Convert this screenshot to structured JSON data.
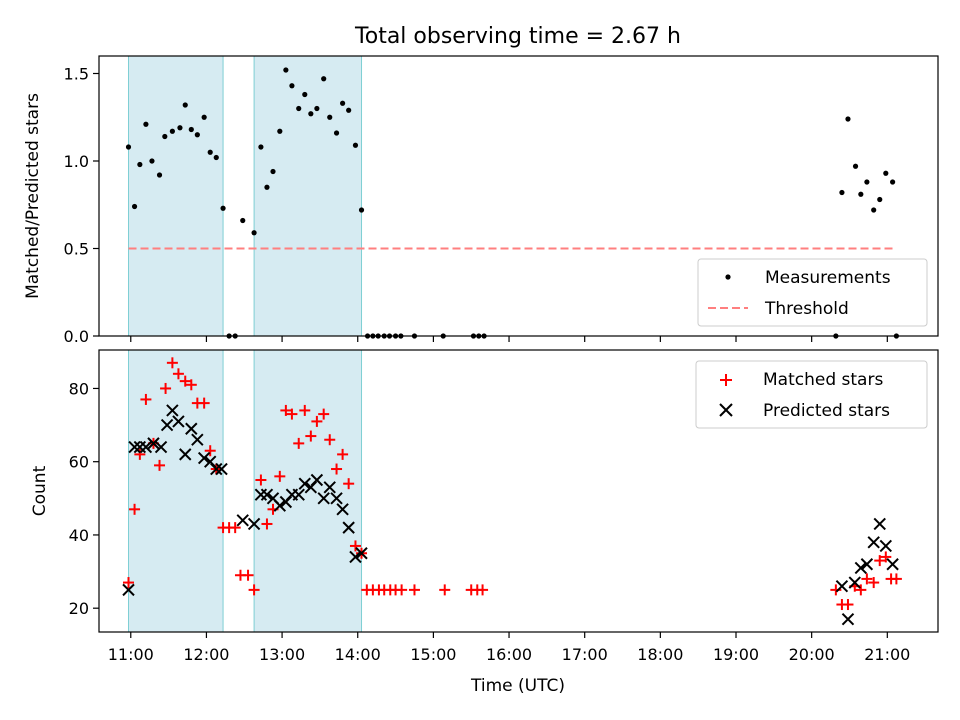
{
  "chart_data": {
    "title": "Total observing time = 2.67 h",
    "xlabel": "Time (UTC)",
    "x_ticks": [
      "11:00",
      "12:00",
      "13:00",
      "14:00",
      "15:00",
      "16:00",
      "17:00",
      "18:00",
      "19:00",
      "20:00",
      "21:00"
    ],
    "x_tick_hours": [
      11,
      12,
      13,
      14,
      15,
      16,
      17,
      18,
      19,
      20,
      21
    ],
    "xlim": [
      10.58,
      21.67
    ],
    "shaded_intervals": [
      [
        10.97,
        12.22
      ],
      [
        12.63,
        14.05
      ]
    ],
    "shade_color": "#add8e6",
    "panels": [
      {
        "type": "scatter",
        "ylabel": "Matched/Predicted stars",
        "ylim": [
          0,
          1.6
        ],
        "y_ticks": [
          "0.0",
          "0.5",
          "1.0",
          "1.5"
        ],
        "y_tick_values": [
          0,
          0.5,
          1.0,
          1.5
        ],
        "threshold": {
          "name": "Threshold",
          "value": 0.5,
          "x_range": [
            10.97,
            21.07
          ],
          "color": "#ff7f7f"
        },
        "legend_position": "lower-right",
        "series": [
          {
            "name": "Measurements",
            "color": "#000000",
            "marker": "dot",
            "points": [
              [
                10.97,
                1.08
              ],
              [
                11.05,
                0.74
              ],
              [
                11.12,
                0.98
              ],
              [
                11.2,
                1.21
              ],
              [
                11.28,
                1.0
              ],
              [
                11.38,
                0.92
              ],
              [
                11.45,
                1.14
              ],
              [
                11.55,
                1.17
              ],
              [
                11.65,
                1.19
              ],
              [
                11.72,
                1.32
              ],
              [
                11.8,
                1.18
              ],
              [
                11.88,
                1.15
              ],
              [
                11.97,
                1.25
              ],
              [
                12.05,
                1.05
              ],
              [
                12.13,
                1.02
              ],
              [
                12.22,
                0.73
              ],
              [
                12.3,
                0.0
              ],
              [
                12.38,
                0.0
              ],
              [
                12.48,
                0.66
              ],
              [
                12.63,
                0.59
              ],
              [
                12.72,
                1.08
              ],
              [
                12.8,
                0.85
              ],
              [
                12.88,
                0.94
              ],
              [
                12.97,
                1.17
              ],
              [
                13.05,
                1.52
              ],
              [
                13.13,
                1.43
              ],
              [
                13.22,
                1.3
              ],
              [
                13.3,
                1.38
              ],
              [
                13.38,
                1.27
              ],
              [
                13.46,
                1.3
              ],
              [
                13.55,
                1.47
              ],
              [
                13.63,
                1.25
              ],
              [
                13.72,
                1.16
              ],
              [
                13.8,
                1.33
              ],
              [
                13.88,
                1.29
              ],
              [
                13.97,
                1.09
              ],
              [
                14.05,
                0.72
              ],
              [
                14.13,
                0.0
              ],
              [
                14.2,
                0.0
              ],
              [
                14.27,
                0.0
              ],
              [
                14.35,
                0.0
              ],
              [
                14.42,
                0.0
              ],
              [
                14.5,
                0.0
              ],
              [
                14.57,
                0.0
              ],
              [
                14.75,
                0.0
              ],
              [
                15.13,
                0.0
              ],
              [
                15.53,
                0.0
              ],
              [
                15.6,
                0.0
              ],
              [
                15.67,
                0.0
              ],
              [
                20.32,
                0.0
              ],
              [
                20.4,
                0.82
              ],
              [
                20.48,
                1.24
              ],
              [
                20.58,
                0.97
              ],
              [
                20.65,
                0.81
              ],
              [
                20.73,
                0.88
              ],
              [
                20.82,
                0.72
              ],
              [
                20.9,
                0.78
              ],
              [
                20.98,
                0.93
              ],
              [
                21.07,
                0.88
              ],
              [
                21.12,
                0.0
              ]
            ]
          }
        ]
      },
      {
        "type": "scatter",
        "ylabel": "Count",
        "ylim": [
          13.5,
          90.5
        ],
        "y_ticks": [
          "20",
          "40",
          "60",
          "80"
        ],
        "y_tick_values": [
          20,
          40,
          60,
          80
        ],
        "legend_position": "upper-right",
        "series": [
          {
            "name": "Matched stars",
            "color": "#ff0000",
            "marker": "plus",
            "points": [
              [
                10.97,
                27
              ],
              [
                11.05,
                47
              ],
              [
                11.12,
                62
              ],
              [
                11.2,
                77
              ],
              [
                11.3,
                65
              ],
              [
                11.38,
                59
              ],
              [
                11.46,
                80
              ],
              [
                11.55,
                87
              ],
              [
                11.63,
                84
              ],
              [
                11.72,
                82
              ],
              [
                11.8,
                81
              ],
              [
                11.88,
                76
              ],
              [
                11.97,
                76
              ],
              [
                12.05,
                63
              ],
              [
                12.13,
                58
              ],
              [
                12.22,
                42
              ],
              [
                12.3,
                42
              ],
              [
                12.38,
                42
              ],
              [
                12.45,
                29
              ],
              [
                12.55,
                29
              ],
              [
                12.63,
                25
              ],
              [
                12.72,
                55
              ],
              [
                12.8,
                43
              ],
              [
                12.88,
                47
              ],
              [
                12.97,
                56
              ],
              [
                13.05,
                74
              ],
              [
                13.13,
                73
              ],
              [
                13.22,
                65
              ],
              [
                13.3,
                74
              ],
              [
                13.38,
                67
              ],
              [
                13.46,
                71
              ],
              [
                13.55,
                73
              ],
              [
                13.63,
                66
              ],
              [
                13.72,
                58
              ],
              [
                13.8,
                62
              ],
              [
                13.88,
                54
              ],
              [
                13.97,
                37
              ],
              [
                14.05,
                35
              ],
              [
                14.12,
                25
              ],
              [
                14.2,
                25
              ],
              [
                14.28,
                25
              ],
              [
                14.35,
                25
              ],
              [
                14.43,
                25
              ],
              [
                14.5,
                25
              ],
              [
                14.58,
                25
              ],
              [
                14.75,
                25
              ],
              [
                15.15,
                25
              ],
              [
                15.5,
                25
              ],
              [
                15.58,
                25
              ],
              [
                15.65,
                25
              ],
              [
                20.32,
                25
              ],
              [
                20.4,
                21
              ],
              [
                20.48,
                21
              ],
              [
                20.57,
                26
              ],
              [
                20.65,
                25
              ],
              [
                20.73,
                28
              ],
              [
                20.82,
                27
              ],
              [
                20.9,
                33
              ],
              [
                20.98,
                34
              ],
              [
                21.05,
                28
              ],
              [
                21.12,
                28
              ]
            ]
          },
          {
            "name": "Predicted stars",
            "color": "#000000",
            "marker": "x",
            "points": [
              [
                10.97,
                25
              ],
              [
                11.05,
                64
              ],
              [
                11.12,
                64
              ],
              [
                11.2,
                64
              ],
              [
                11.3,
                65
              ],
              [
                11.4,
                64
              ],
              [
                11.48,
                70
              ],
              [
                11.55,
                74
              ],
              [
                11.63,
                71
              ],
              [
                11.72,
                62
              ],
              [
                11.8,
                69
              ],
              [
                11.88,
                66
              ],
              [
                11.97,
                61
              ],
              [
                12.05,
                60
              ],
              [
                12.13,
                58
              ],
              [
                12.2,
                58
              ],
              [
                12.48,
                44
              ],
              [
                12.63,
                43
              ],
              [
                12.72,
                51
              ],
              [
                12.8,
                51
              ],
              [
                12.88,
                50
              ],
              [
                12.97,
                48
              ],
              [
                13.05,
                49
              ],
              [
                13.13,
                51
              ],
              [
                13.22,
                51
              ],
              [
                13.3,
                54
              ],
              [
                13.38,
                53
              ],
              [
                13.46,
                55
              ],
              [
                13.55,
                50
              ],
              [
                13.63,
                53
              ],
              [
                13.72,
                50
              ],
              [
                13.8,
                47
              ],
              [
                13.88,
                42
              ],
              [
                13.97,
                34
              ],
              [
                14.05,
                35
              ],
              [
                20.4,
                26
              ],
              [
                20.48,
                17
              ],
              [
                20.57,
                27
              ],
              [
                20.65,
                31
              ],
              [
                20.73,
                32
              ],
              [
                20.82,
                38
              ],
              [
                20.9,
                43
              ],
              [
                20.98,
                37
              ],
              [
                21.07,
                32
              ]
            ]
          }
        ]
      }
    ]
  }
}
